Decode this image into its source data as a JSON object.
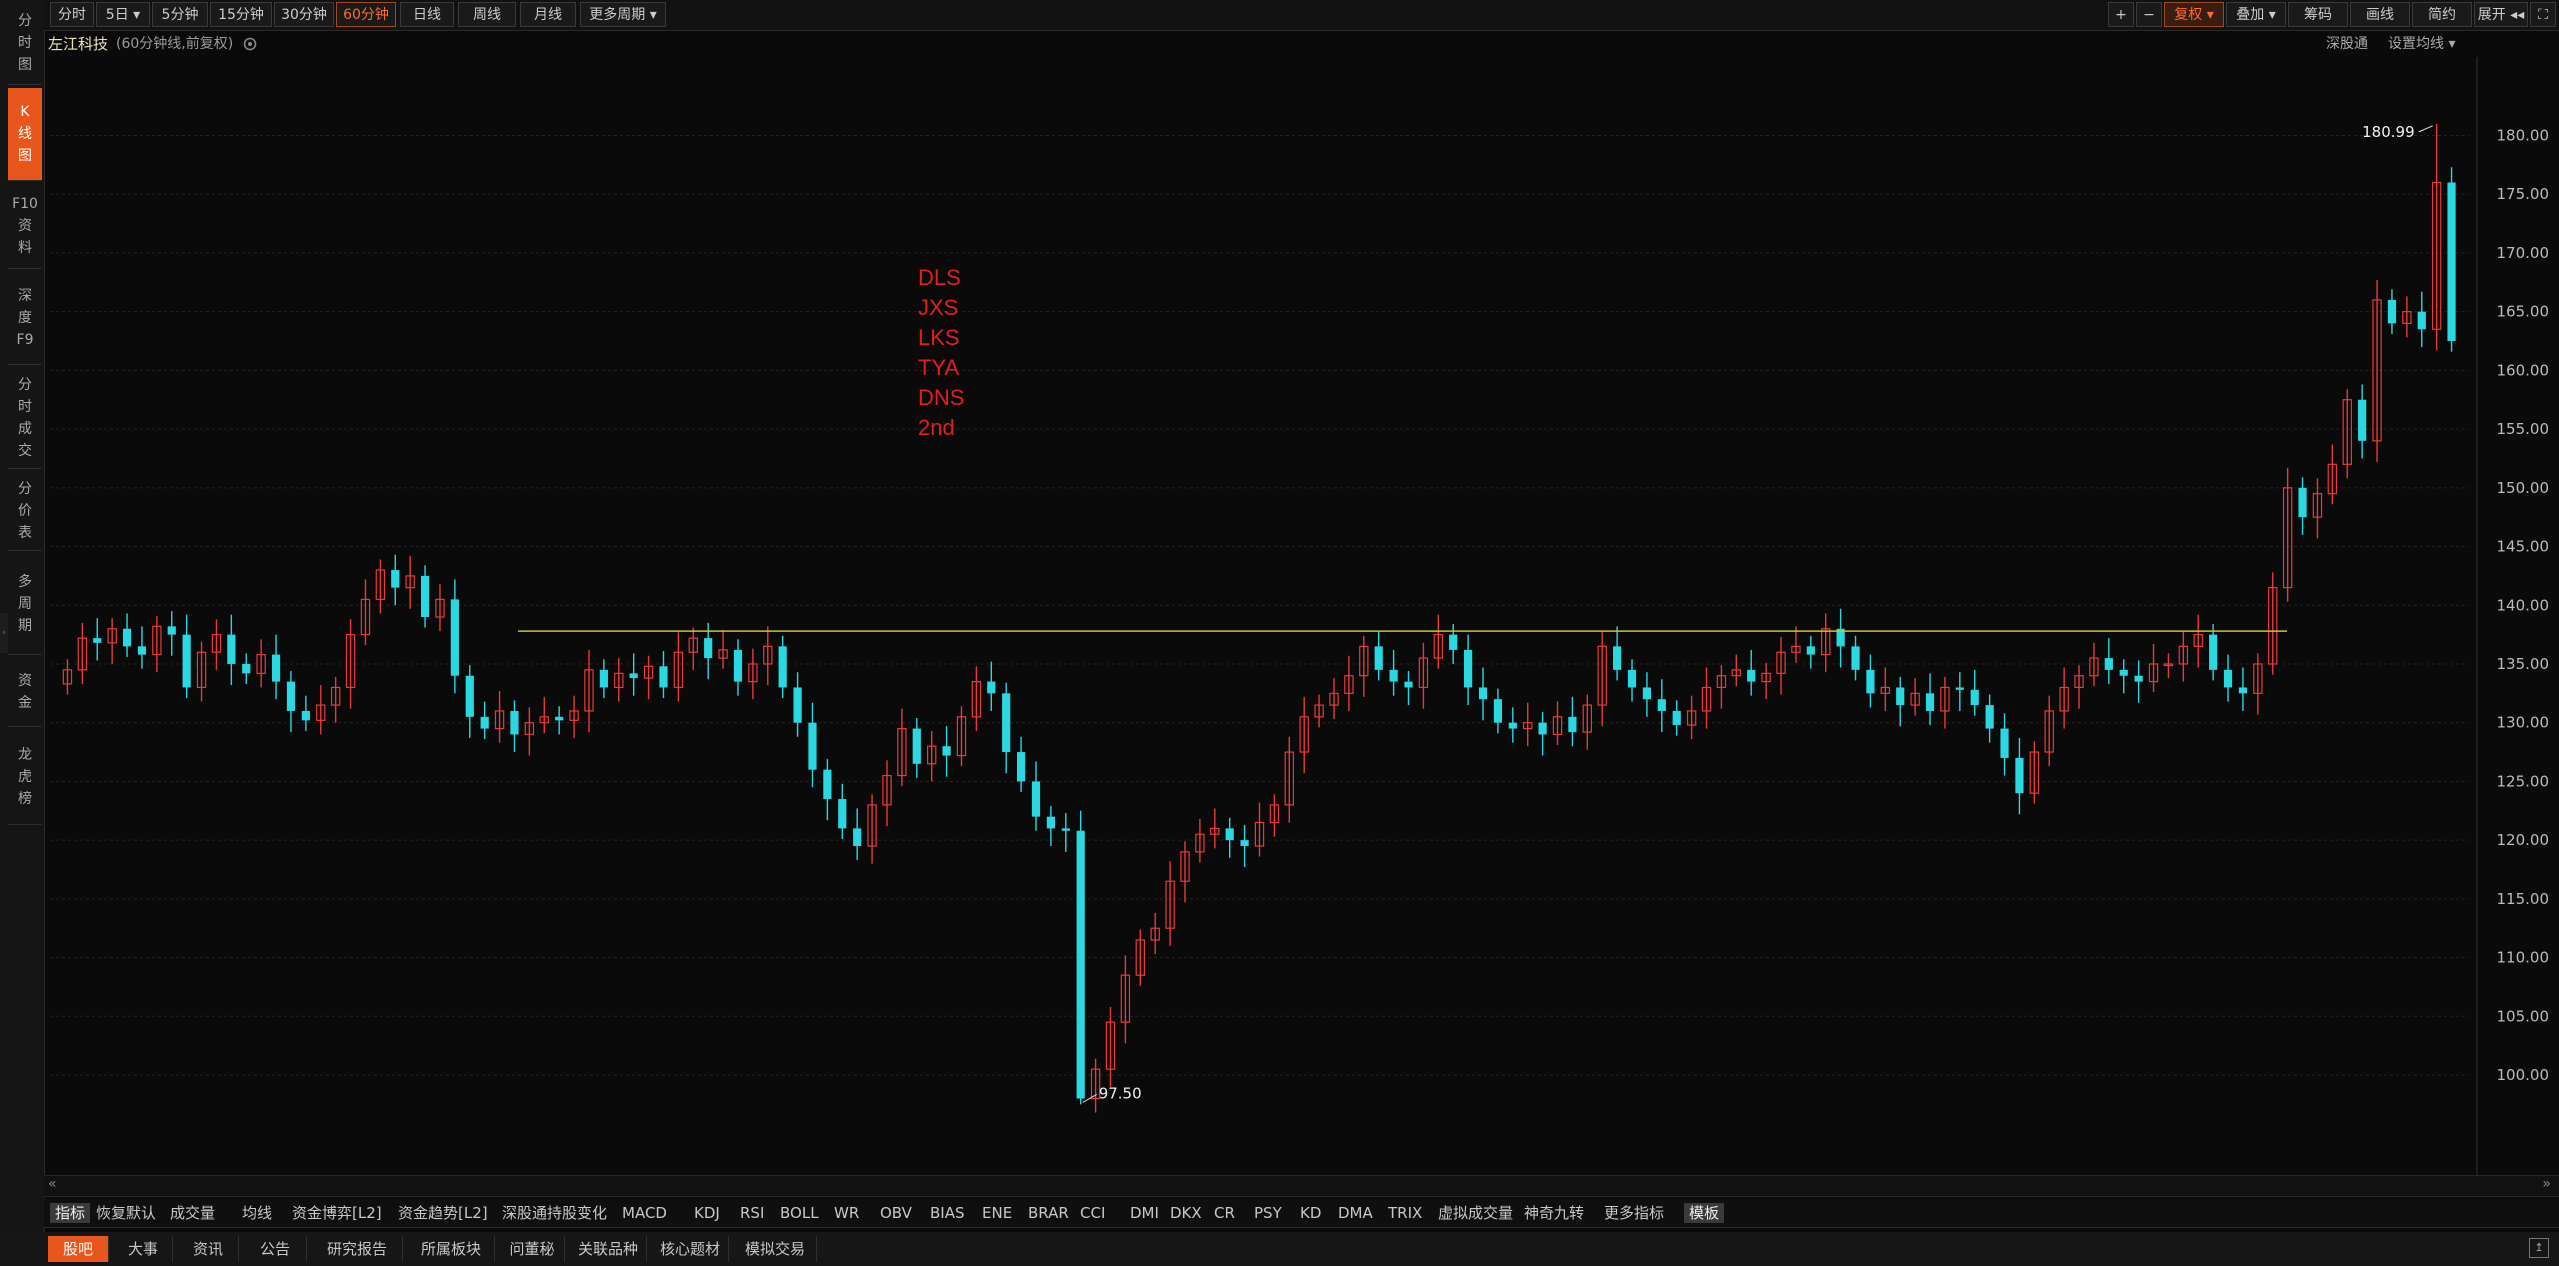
{
  "left_rail": [
    {
      "lines": [
        "分",
        "时",
        "图"
      ],
      "active": false
    },
    {
      "lines": [
        "K",
        "线",
        "图"
      ],
      "active": true
    },
    {
      "lines": [
        "F10",
        "资",
        "料"
      ],
      "active": false
    },
    {
      "lines": [
        "深",
        "度",
        "F9"
      ],
      "active": false
    },
    {
      "lines": [
        "分",
        "时",
        "成",
        "交"
      ],
      "active": false
    },
    {
      "lines": [
        "分",
        "价",
        "表"
      ],
      "active": false
    },
    {
      "lines": [
        "多",
        "周",
        "期"
      ],
      "active": false
    },
    {
      "lines": [
        "资",
        "金"
      ],
      "active": false
    },
    {
      "lines": [
        "龙",
        "虎",
        "榜"
      ],
      "active": false
    }
  ],
  "period_tabs": [
    {
      "label": "分时"
    },
    {
      "label": "5日 ▾"
    },
    {
      "label": "5分钟"
    },
    {
      "label": "15分钟"
    },
    {
      "label": "30分钟"
    },
    {
      "label": "60分钟",
      "active": true
    },
    {
      "label": "日线"
    },
    {
      "label": "周线"
    },
    {
      "label": "月线"
    },
    {
      "label": "更多周期 ▾"
    }
  ],
  "toolbar_right": [
    {
      "label": "+",
      "icon": "plus-icon"
    },
    {
      "label": "−",
      "icon": "minus-icon"
    },
    {
      "label": "复权 ▾",
      "active": true
    },
    {
      "label": "叠加 ▾"
    },
    {
      "label": "筹码"
    },
    {
      "label": "画线"
    },
    {
      "label": "简约"
    },
    {
      "label": "展开 ◂◂"
    },
    {
      "label": "⛶",
      "icon": "fullscreen-icon"
    }
  ],
  "info": {
    "stock_name": "左江科技",
    "chart_mode": "(60分钟线,前复权)",
    "settings_icon": "gear-icon",
    "link_shengu": "深股通",
    "link_ma": "设置均线 ▾"
  },
  "chart_data": {
    "type": "candlestick",
    "ylim": [
      96,
      182
    ],
    "y_ticks": [
      "180.00",
      "175.00",
      "170.00",
      "165.00",
      "160.00",
      "155.00",
      "150.00",
      "145.00",
      "140.00",
      "135.00",
      "130.00",
      "125.00",
      "120.00",
      "115.00",
      "110.00",
      "105.00",
      "100.00"
    ],
    "max_label": "180.99",
    "min_label": "97.50",
    "max_value": 180.99,
    "min_value": 97.5,
    "resistance_line": 137.8,
    "up_color": "#e83a3a",
    "down_color": "#2ad8e2",
    "line_color": "#c8c820",
    "series": [
      134.5,
      137.2,
      136.8,
      138.0,
      136.5,
      135.8,
      138.2,
      137.5,
      133.0,
      136.0,
      137.5,
      135.0,
      134.2,
      135.8,
      133.5,
      131.0,
      130.2,
      131.5,
      133.0,
      137.5,
      140.5,
      143.0,
      141.5,
      142.5,
      139.0,
      140.5,
      134.0,
      130.5,
      129.5,
      131.0,
      129.0,
      130.0,
      130.5,
      130.2,
      131.0,
      134.5,
      133.0,
      134.2,
      133.8,
      134.8,
      133.0,
      136.0,
      137.2,
      135.5,
      136.2,
      133.5,
      135.0,
      136.5,
      133.0,
      130.0,
      126.0,
      123.5,
      121.0,
      119.5,
      123.0,
      125.5,
      129.5,
      126.5,
      128.0,
      127.2,
      130.5,
      133.5,
      132.5,
      127.5,
      125.0,
      122.0,
      121.0,
      120.8,
      98.0,
      100.5,
      104.5,
      108.5,
      111.5,
      112.5,
      116.5,
      119.0,
      120.5,
      121.0,
      120.0,
      119.5,
      121.5,
      123.0,
      127.5,
      130.5,
      131.5,
      132.5,
      134.0,
      136.5,
      134.5,
      133.5,
      133.0,
      135.5,
      137.5,
      136.2,
      133.0,
      132.0,
      130.0,
      129.5,
      130.0,
      129.0,
      130.5,
      129.2,
      131.5,
      136.5,
      134.5,
      133.0,
      132.0,
      131.0,
      129.8,
      131.0,
      133.0,
      134.0,
      134.5,
      133.5,
      134.2,
      136.0,
      136.5,
      135.8,
      138.0,
      136.5,
      134.5,
      132.5,
      133.0,
      131.5,
      132.5,
      131.0,
      133.0,
      132.8,
      131.5,
      129.5,
      127.0,
      124.0,
      127.5,
      131.0,
      133.0,
      134.0,
      135.5,
      134.5,
      134.0,
      133.5,
      135.0,
      135.0,
      136.5,
      137.5,
      134.5,
      133.0,
      132.5,
      135.0,
      141.5,
      150.0,
      147.5,
      149.5,
      152.0,
      157.5,
      154.0,
      166.0,
      164.0,
      165.0,
      163.5,
      176.0,
      162.5
    ]
  },
  "annotations": [
    "DLS",
    "JXS",
    "LKS",
    "TYA",
    "DNS",
    "2nd"
  ],
  "indicator_tabs": [
    "指标",
    "恢复默认",
    "成交量",
    "均线",
    "资金博弈[L2]",
    "资金趋势[L2]",
    "深股通持股变化",
    "MACD",
    "KDJ",
    "RSI",
    "BOLL",
    "WR",
    "OBV",
    "BIAS",
    "ENE",
    "BRAR",
    "CCI",
    "DMI",
    "DKX",
    "CR",
    "PSY",
    "KD",
    "DMA",
    "TRIX",
    "虚拟成交量",
    "神奇九转",
    "更多指标",
    "模板"
  ],
  "bottom_tabs": [
    {
      "label": "股吧",
      "active": true
    },
    {
      "label": "大事"
    },
    {
      "label": "资讯"
    },
    {
      "label": "公告"
    },
    {
      "label": "研究报告"
    },
    {
      "label": "所属板块"
    },
    {
      "label": "问董秘"
    },
    {
      "label": "关联品种"
    },
    {
      "label": "核心题材"
    },
    {
      "label": "模拟交易"
    }
  ],
  "scroll": {
    "left": "«",
    "right": "»"
  }
}
